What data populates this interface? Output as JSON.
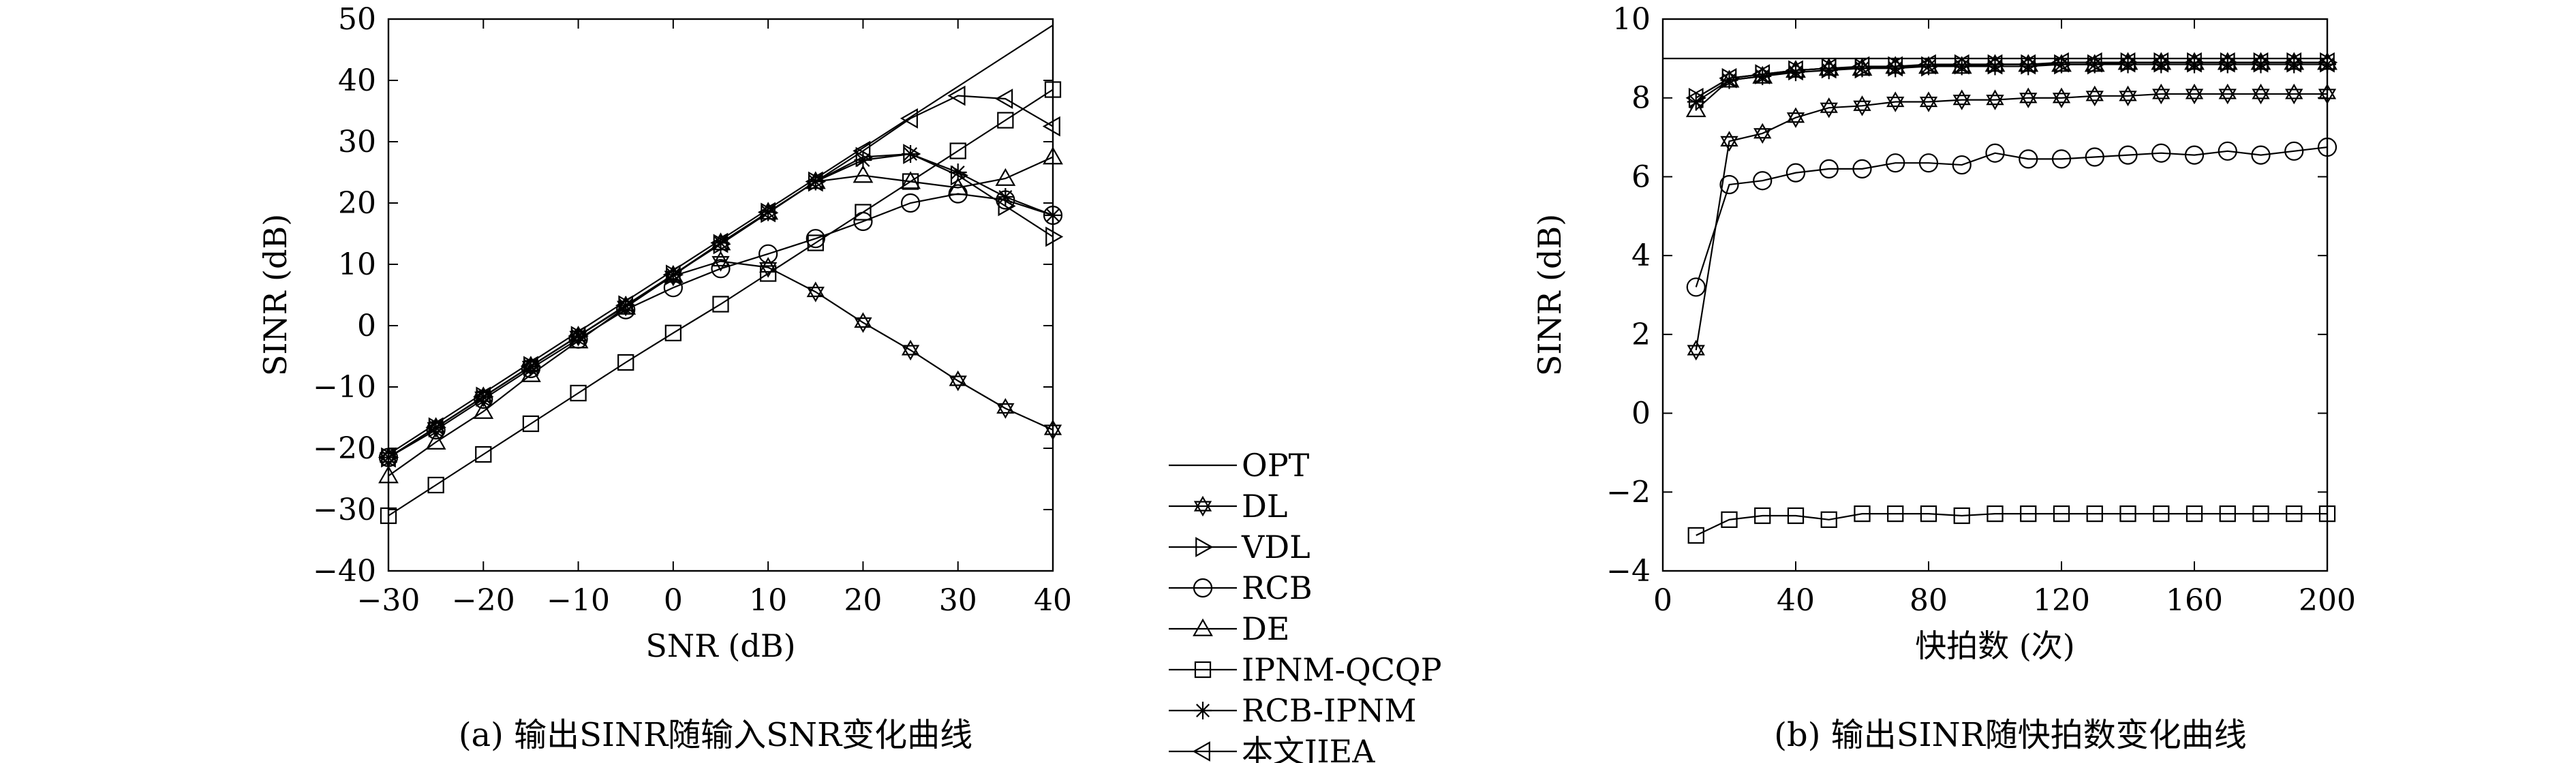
{
  "figure": {
    "caption_a": "(a) 输出SINR随输入SNR变化曲线",
    "caption_b": "(b) 输出SINR随快拍数变化曲线"
  },
  "legend": [
    {
      "label": "OPT",
      "marker": "none"
    },
    {
      "label": "DL",
      "marker": "star6"
    },
    {
      "label": "VDL",
      "marker": "tri-right"
    },
    {
      "label": "RCB",
      "marker": "circle"
    },
    {
      "label": "DE",
      "marker": "tri-up"
    },
    {
      "label": "IPNM-QCQP",
      "marker": "square"
    },
    {
      "label": "RCB-IPNM",
      "marker": "asterisk"
    },
    {
      "label": "本文JIEA",
      "marker": "tri-left"
    }
  ],
  "chart_data": [
    {
      "type": "line",
      "xlabel": "SNR (dB)",
      "ylabel": "SINR (dB)",
      "xlim": [
        -30,
        40
      ],
      "ylim": [
        -40,
        50
      ],
      "xticks": [
        -30,
        -20,
        -10,
        0,
        10,
        20,
        30,
        40
      ],
      "xtick_labels": [
        "−30",
        "−20",
        "−10",
        "0",
        "10",
        "20",
        "30",
        "40"
      ],
      "yticks": [
        -40,
        -30,
        -20,
        -10,
        0,
        10,
        20,
        30,
        40,
        50
      ],
      "ytick_labels": [
        "−40",
        "−30",
        "−20",
        "−10",
        "0",
        "10",
        "20",
        "30",
        "40",
        "50"
      ],
      "grid": false,
      "x": [
        -30,
        -25,
        -20,
        -15,
        -10,
        -5,
        0,
        5,
        10,
        15,
        20,
        25,
        30,
        35,
        40
      ],
      "series": [
        {
          "name": "OPT",
          "marker": "none",
          "values": [
            -21,
            -16,
            -11,
            -6,
            -1,
            4,
            9,
            14,
            19,
            24,
            29,
            34,
            39,
            44,
            49
          ]
        },
        {
          "name": "DL",
          "marker": "star6",
          "values": [
            -21.5,
            -16.6,
            -11.6,
            -6.6,
            -1.7,
            3.2,
            8.1,
            10.5,
            9.5,
            5.5,
            0.5,
            -4,
            -9,
            -13.5,
            -17
          ]
        },
        {
          "name": "VDL",
          "marker": "tri-right",
          "values": [
            -21.5,
            -16.6,
            -11.6,
            -6.6,
            -1.7,
            3.3,
            8.3,
            13.3,
            18.4,
            23.5,
            27.5,
            28,
            24.5,
            19.5,
            14.5
          ]
        },
        {
          "name": "RCB",
          "marker": "circle",
          "values": [
            -21.5,
            -17,
            -12,
            -7,
            -2.2,
            2.6,
            6.2,
            9.3,
            11.7,
            14.2,
            17,
            20,
            21.5,
            20.5,
            18
          ]
        },
        {
          "name": "DE",
          "marker": "tri-up",
          "values": [
            -24.5,
            -19,
            -14,
            -8,
            -2.5,
            3,
            8.2,
            13.5,
            18.5,
            23.5,
            24.5,
            23.5,
            22.5,
            24,
            27.5
          ]
        },
        {
          "name": "IPNM-QCQP",
          "marker": "square",
          "values": [
            -31,
            -26,
            -21,
            -16,
            -11,
            -6,
            -1.2,
            3.5,
            8.5,
            13.5,
            18.5,
            23.5,
            28.5,
            33.5,
            38.5
          ]
        },
        {
          "name": "RCB-IPNM",
          "marker": "asterisk",
          "values": [
            -21.5,
            -16.6,
            -11.6,
            -6.6,
            -1.7,
            3.3,
            8.3,
            13.5,
            18.5,
            23.5,
            27,
            28,
            25,
            21,
            18
          ]
        },
        {
          "name": "本文JIEA",
          "marker": "tri-left",
          "values": [
            -21.5,
            -16.6,
            -11.6,
            -6.6,
            -1.7,
            3.3,
            8.3,
            13.5,
            18.5,
            23.5,
            28.5,
            33.8,
            37.5,
            37,
            32.5
          ]
        }
      ]
    },
    {
      "type": "line",
      "xlabel": "快拍数 (次)",
      "ylabel": "SINR (dB)",
      "xlim": [
        0,
        200
      ],
      "ylim": [
        -4,
        10
      ],
      "xticks": [
        0,
        40,
        80,
        120,
        160,
        200
      ],
      "xtick_labels": [
        "0",
        "40",
        "80",
        "120",
        "160",
        "200"
      ],
      "yticks": [
        -4,
        -2,
        0,
        2,
        4,
        6,
        8,
        10
      ],
      "ytick_labels": [
        "−4",
        "−2",
        "0",
        "2",
        "4",
        "6",
        "8",
        "10"
      ],
      "grid": false,
      "x": [
        10,
        20,
        30,
        40,
        50,
        60,
        70,
        80,
        90,
        100,
        110,
        120,
        130,
        140,
        150,
        160,
        170,
        180,
        190,
        200
      ],
      "series": [
        {
          "name": "OPT",
          "marker": "none",
          "values": [
            9,
            9,
            9,
            9,
            9,
            9,
            9,
            9,
            9,
            9,
            9,
            9,
            9,
            9,
            9,
            9,
            9,
            9,
            9,
            9
          ]
        },
        {
          "name": "DL",
          "marker": "star6",
          "values": [
            1.6,
            6.9,
            7.1,
            7.5,
            7.75,
            7.8,
            7.9,
            7.9,
            7.95,
            7.95,
            8.0,
            8.0,
            8.05,
            8.05,
            8.1,
            8.1,
            8.1,
            8.1,
            8.1,
            8.1
          ]
        },
        {
          "name": "VDL",
          "marker": "tri-right",
          "values": [
            8.0,
            8.5,
            8.6,
            8.7,
            8.75,
            8.75,
            8.8,
            8.8,
            8.85,
            8.85,
            8.85,
            8.85,
            8.85,
            8.9,
            8.9,
            8.9,
            8.9,
            8.9,
            8.9,
            8.9
          ]
        },
        {
          "name": "RCB",
          "marker": "circle",
          "values": [
            3.2,
            5.8,
            5.9,
            6.1,
            6.2,
            6.2,
            6.35,
            6.35,
            6.3,
            6.6,
            6.45,
            6.45,
            6.5,
            6.55,
            6.6,
            6.55,
            6.65,
            6.55,
            6.65,
            6.75
          ]
        },
        {
          "name": "DE",
          "marker": "tri-up",
          "values": [
            7.7,
            8.45,
            8.55,
            8.7,
            8.75,
            8.75,
            8.8,
            8.8,
            8.8,
            8.85,
            8.85,
            8.85,
            8.85,
            8.9,
            8.9,
            8.9,
            8.9,
            8.9,
            8.9,
            8.9
          ]
        },
        {
          "name": "IPNM-QCQP",
          "marker": "square",
          "values": [
            -3.1,
            -2.7,
            -2.6,
            -2.6,
            -2.7,
            -2.55,
            -2.55,
            -2.55,
            -2.6,
            -2.55,
            -2.55,
            -2.55,
            -2.55,
            -2.55,
            -2.55,
            -2.55,
            -2.55,
            -2.55,
            -2.55,
            -2.55
          ]
        },
        {
          "name": "RCB-IPNM",
          "marker": "asterisk",
          "values": [
            7.9,
            8.45,
            8.55,
            8.65,
            8.7,
            8.75,
            8.75,
            8.8,
            8.8,
            8.8,
            8.8,
            8.85,
            8.85,
            8.85,
            8.85,
            8.85,
            8.85,
            8.85,
            8.85,
            8.85
          ]
        },
        {
          "name": "本文JIEA",
          "marker": "tri-left",
          "values": [
            8.0,
            8.5,
            8.6,
            8.7,
            8.75,
            8.8,
            8.8,
            8.85,
            8.85,
            8.85,
            8.85,
            8.9,
            8.9,
            8.9,
            8.9,
            8.9,
            8.9,
            8.9,
            8.9,
            8.9
          ]
        }
      ]
    }
  ]
}
